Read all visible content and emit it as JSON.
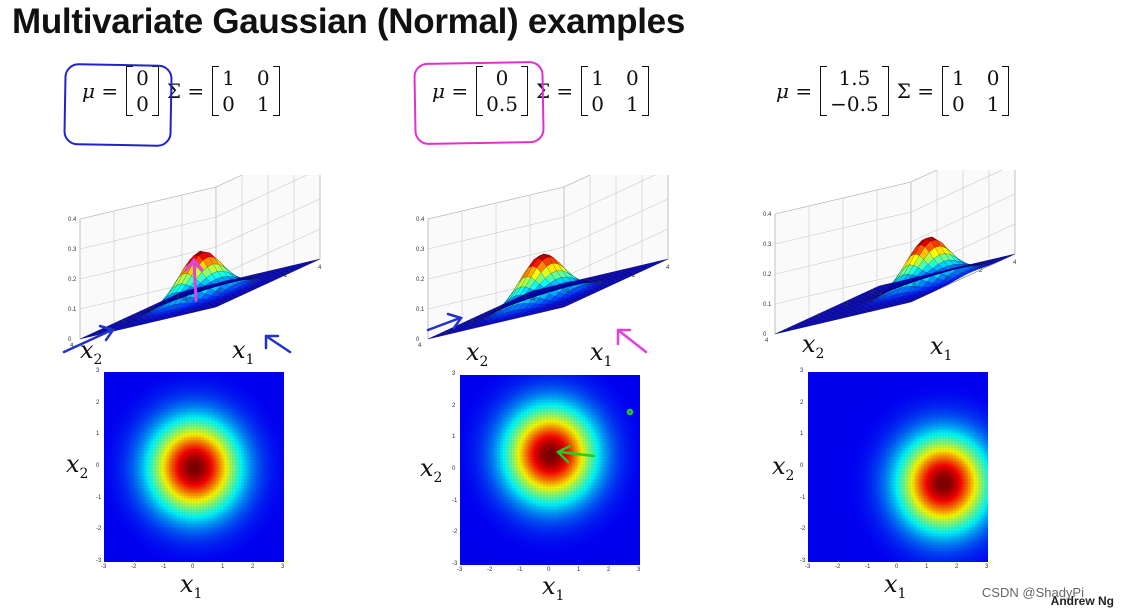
{
  "title": "Multivariate Gaussian (Normal) examples",
  "panels": [
    {
      "mu_symbol": "μ =",
      "mu": [
        "0",
        "0"
      ],
      "sigma_symbol": "Σ =",
      "sigma": [
        [
          "1",
          "0"
        ],
        [
          "0",
          "1"
        ]
      ],
      "center": [
        0,
        0
      ]
    },
    {
      "mu_symbol": "μ =",
      "mu": [
        "0",
        "0.5"
      ],
      "sigma_symbol": "Σ =",
      "sigma": [
        [
          "1",
          "0"
        ],
        [
          "0",
          "1"
        ]
      ],
      "center": [
        0,
        0.5
      ]
    },
    {
      "mu_symbol": "μ =",
      "mu": [
        "1.5",
        "−0.5"
      ],
      "sigma_symbol": "Σ =",
      "sigma": [
        [
          "1",
          "0"
        ],
        [
          "0",
          "1"
        ]
      ],
      "center": [
        1.5,
        -0.5
      ]
    }
  ],
  "axes": {
    "x1": "x",
    "x1_sub": "1",
    "x2": "x",
    "x2_sub": "2"
  },
  "z_ticks": [
    "0.4",
    "0.3",
    "0.2",
    "0.1",
    "0"
  ],
  "xy_ticks_3d": [
    "4",
    "2",
    "0",
    "-2",
    "-4"
  ],
  "heat_ticks": [
    "3",
    "2",
    "1",
    "0",
    "-1",
    "-2",
    "-3"
  ],
  "watermark": "CSDN @ShadyPi",
  "credit": "Andrew Ng",
  "colors": {
    "blue_circle": "#2222cc",
    "pink_circle": "#e030d0",
    "arrow_blue": "#2233cc",
    "arrow_pink": "#e040e0",
    "arrow_green": "#22cc22"
  }
}
